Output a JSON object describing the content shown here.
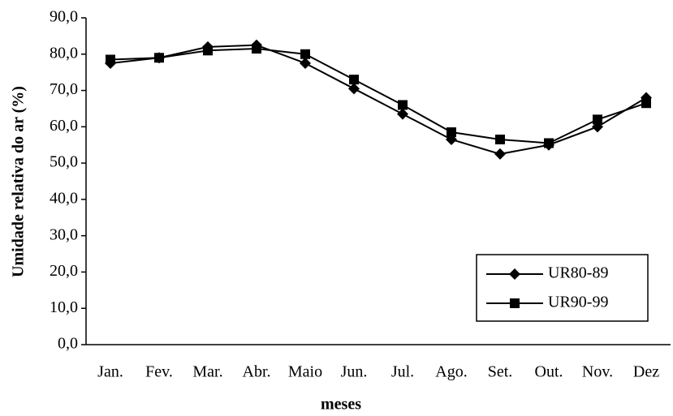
{
  "chart_data": {
    "type": "line",
    "x_label": "meses",
    "y_label": "Umidade relativa do ar (%)",
    "categories": [
      "Jan.",
      "Fev.",
      "Mar.",
      "Abr.",
      "Maio",
      "Jun.",
      "Jul.",
      "Ago.",
      "Set.",
      "Out.",
      "Nov.",
      "Dez"
    ],
    "series": [
      {
        "name": "UR80-89",
        "color": "#000000",
        "marker": "diamond",
        "values": [
          77.5,
          79,
          82,
          82.5,
          77.5,
          70.5,
          63.5,
          56.5,
          52.5,
          55,
          60,
          68
        ]
      },
      {
        "name": "UR90-99",
        "color": "#000000",
        "marker": "square",
        "values": [
          78.5,
          79,
          81,
          81.5,
          80,
          73,
          66,
          58.5,
          56.5,
          55.5,
          62,
          66.5
        ]
      }
    ],
    "ylim": [
      0,
      90
    ],
    "yticks": [
      {
        "value": 0,
        "label": "0,0"
      },
      {
        "value": 10,
        "label": "10,0"
      },
      {
        "value": 20,
        "label": "20,0"
      },
      {
        "value": 30,
        "label": "30,0"
      },
      {
        "value": 40,
        "label": "40,0"
      },
      {
        "value": 50,
        "label": "50,0"
      },
      {
        "value": 60,
        "label": "60,0"
      },
      {
        "value": 70,
        "label": "70,0"
      },
      {
        "value": 80,
        "label": "80,0"
      },
      {
        "value": 90,
        "label": "90,0"
      }
    ],
    "grid": false,
    "legend": "lower right"
  }
}
